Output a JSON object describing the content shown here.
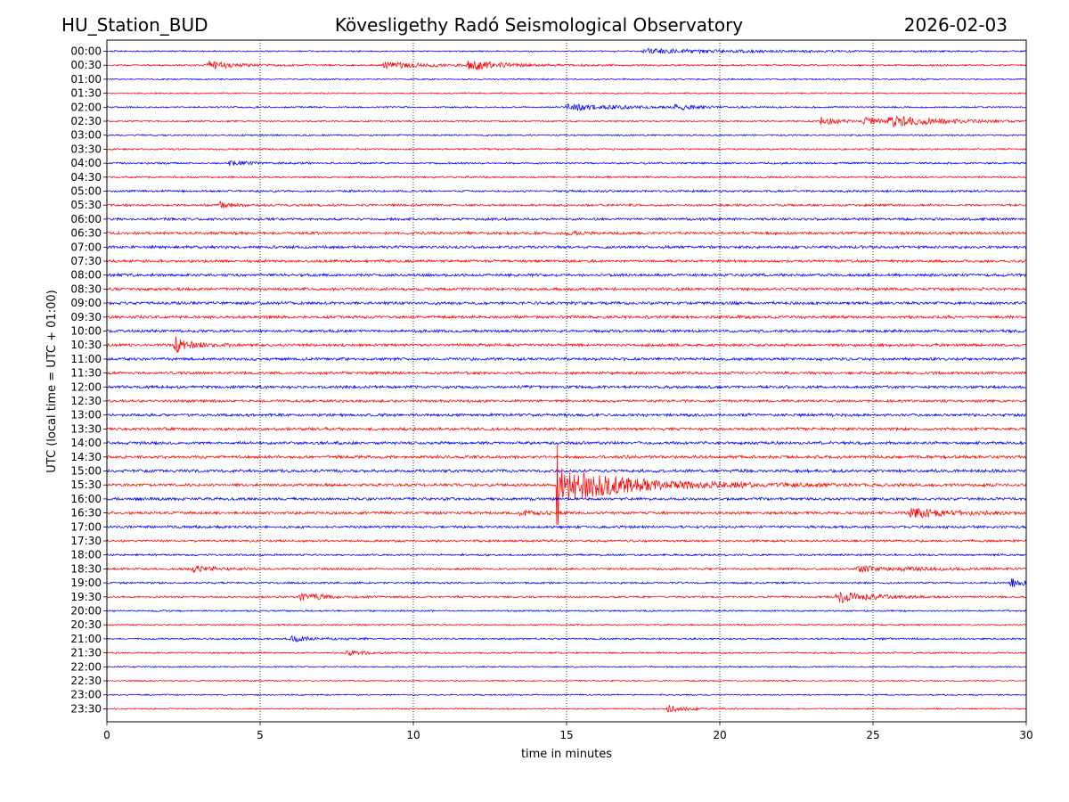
{
  "chart_data": {
    "type": "line",
    "title_left": "HU_Station_BUD",
    "title": "Köveslig­ethy Radó Seismological Observatory",
    "title_right": "2026-02-03",
    "xlabel": "time in minutes",
    "ylabel": "UTC (local time = UTC + 01:00)",
    "xlim": [
      0,
      30
    ],
    "x_ticks": [
      0,
      5,
      10,
      15,
      20,
      25,
      30
    ],
    "x_tick_labels": [
      "0",
      "5",
      "10",
      "15",
      "20",
      "25",
      "30"
    ],
    "vertical_gridlines": [
      5,
      10,
      15,
      20,
      25
    ],
    "grid": "dotted vertical",
    "row_colors": [
      "#0000ff",
      "#ff0000"
    ],
    "rows": [
      {
        "label": "00:00",
        "noise": 0.22,
        "events": [
          {
            "t": 17.5,
            "amp": 0.7,
            "dur": 4.0
          }
        ]
      },
      {
        "label": "00:30",
        "noise": 0.28,
        "events": [
          {
            "t": 3.3,
            "amp": 1.5,
            "dur": 0.8
          },
          {
            "t": 9.0,
            "amp": 1.0,
            "dur": 1.5
          },
          {
            "t": 11.8,
            "amp": 1.7,
            "dur": 1.0
          }
        ]
      },
      {
        "label": "01:00",
        "noise": 0.22,
        "events": []
      },
      {
        "label": "01:30",
        "noise": 0.22,
        "events": []
      },
      {
        "label": "02:00",
        "noise": 0.25,
        "events": [
          {
            "t": 15.0,
            "amp": 1.2,
            "dur": 1.5
          },
          {
            "t": 18.5,
            "amp": 0.9,
            "dur": 0.8
          }
        ]
      },
      {
        "label": "02:30",
        "noise": 0.26,
        "events": [
          {
            "t": 23.3,
            "amp": 1.4,
            "dur": 0.6
          },
          {
            "t": 24.7,
            "amp": 1.5,
            "dur": 0.5
          },
          {
            "t": 25.5,
            "amp": 1.7,
            "dur": 1.8
          }
        ]
      },
      {
        "label": "03:00",
        "noise": 0.24,
        "events": []
      },
      {
        "label": "03:30",
        "noise": 0.26,
        "events": []
      },
      {
        "label": "04:00",
        "noise": 0.3,
        "events": [
          {
            "t": 4.0,
            "amp": 0.8,
            "dur": 0.6
          }
        ]
      },
      {
        "label": "04:30",
        "noise": 0.3,
        "events": []
      },
      {
        "label": "05:00",
        "noise": 0.34,
        "events": []
      },
      {
        "label": "05:30",
        "noise": 0.36,
        "events": [
          {
            "t": 3.7,
            "amp": 1.0,
            "dur": 0.5
          }
        ]
      },
      {
        "label": "06:00",
        "noise": 0.4,
        "events": []
      },
      {
        "label": "06:30",
        "noise": 0.42,
        "events": [
          {
            "t": 15.0,
            "amp": 1.0,
            "dur": 0.4
          }
        ]
      },
      {
        "label": "07:00",
        "noise": 0.44,
        "events": []
      },
      {
        "label": "07:30",
        "noise": 0.42,
        "events": []
      },
      {
        "label": "08:00",
        "noise": 0.44,
        "events": []
      },
      {
        "label": "08:30",
        "noise": 0.44,
        "events": []
      },
      {
        "label": "09:00",
        "noise": 0.46,
        "events": []
      },
      {
        "label": "09:30",
        "noise": 0.44,
        "events": []
      },
      {
        "label": "10:00",
        "noise": 0.44,
        "events": []
      },
      {
        "label": "10:30",
        "noise": 0.44,
        "events": [
          {
            "t": 2.2,
            "amp": 3.0,
            "dur": 0.5
          }
        ]
      },
      {
        "label": "11:00",
        "noise": 0.44,
        "events": []
      },
      {
        "label": "11:30",
        "noise": 0.42,
        "events": []
      },
      {
        "label": "12:00",
        "noise": 0.44,
        "events": []
      },
      {
        "label": "12:30",
        "noise": 0.4,
        "events": []
      },
      {
        "label": "13:00",
        "noise": 0.46,
        "events": []
      },
      {
        "label": "13:30",
        "noise": 0.46,
        "events": []
      },
      {
        "label": "14:00",
        "noise": 0.46,
        "events": []
      },
      {
        "label": "14:30",
        "noise": 0.46,
        "events": []
      },
      {
        "label": "15:00",
        "noise": 0.48,
        "events": []
      },
      {
        "label": "15:30",
        "noise": 0.44,
        "events": [
          {
            "t": 14.7,
            "amp": 6.0,
            "dur": 2.5,
            "spike": 14.0
          }
        ]
      },
      {
        "label": "16:00",
        "noise": 0.44,
        "events": []
      },
      {
        "label": "16:30",
        "noise": 0.42,
        "events": [
          {
            "t": 13.5,
            "amp": 1.0,
            "dur": 0.6
          },
          {
            "t": 26.2,
            "amp": 1.5,
            "dur": 1.6
          }
        ]
      },
      {
        "label": "17:00",
        "noise": 0.4,
        "events": []
      },
      {
        "label": "17:30",
        "noise": 0.36,
        "events": []
      },
      {
        "label": "18:00",
        "noise": 0.32,
        "events": []
      },
      {
        "label": "18:30",
        "noise": 0.34,
        "events": [
          {
            "t": 2.8,
            "amp": 1.2,
            "dur": 0.6
          },
          {
            "t": 24.5,
            "amp": 0.9,
            "dur": 2.0
          }
        ]
      },
      {
        "label": "19:00",
        "noise": 0.3,
        "events": [
          {
            "t": 29.5,
            "amp": 1.6,
            "dur": 0.4
          }
        ]
      },
      {
        "label": "19:30",
        "noise": 0.3,
        "events": [
          {
            "t": 6.3,
            "amp": 1.3,
            "dur": 0.8
          },
          {
            "t": 23.8,
            "amp": 2.2,
            "dur": 1.0
          }
        ]
      },
      {
        "label": "20:00",
        "noise": 0.26,
        "events": []
      },
      {
        "label": "20:30",
        "noise": 0.24,
        "events": []
      },
      {
        "label": "21:00",
        "noise": 0.28,
        "events": [
          {
            "t": 6.0,
            "amp": 0.8,
            "dur": 0.8
          }
        ]
      },
      {
        "label": "21:30",
        "noise": 0.26,
        "events": [
          {
            "t": 7.8,
            "amp": 0.9,
            "dur": 0.6
          }
        ]
      },
      {
        "label": "22:00",
        "noise": 0.22,
        "events": []
      },
      {
        "label": "22:30",
        "noise": 0.2,
        "events": []
      },
      {
        "label": "23:00",
        "noise": 0.22,
        "events": []
      },
      {
        "label": "23:30",
        "noise": 0.22,
        "events": [
          {
            "t": 18.3,
            "amp": 1.2,
            "dur": 0.6
          }
        ]
      }
    ]
  }
}
